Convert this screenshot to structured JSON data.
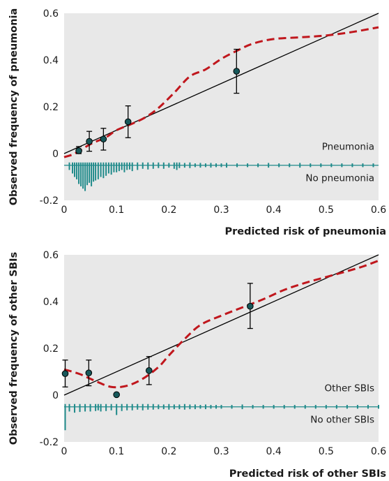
{
  "colors": {
    "panel_bg": "#e8e8e8",
    "ideal_line": "#000000",
    "calibration_curve": "#c0171d",
    "points_fill": "#17585a",
    "spike_color": "#1f8a8a",
    "errorbar": "#000000"
  },
  "chart_data": [
    {
      "type": "scatter",
      "ylabel": "Observed frequency of pneumonia",
      "xlabel": "Predicted risk of pneumonia",
      "xlim": [
        0,
        0.6
      ],
      "ylim": [
        -0.2,
        0.6
      ],
      "x_ticks": [
        "0",
        "0.1",
        "0.2",
        "0.3",
        "0.4",
        "0.5",
        "0.6"
      ],
      "y_ticks": [
        "-0.2",
        "0",
        "0.2",
        "0.4",
        "0.6"
      ],
      "annotation_above": "Pneumonia",
      "annotation_below": "No pneumonia",
      "grid": false,
      "reference_line": [
        [
          0,
          0
        ],
        [
          0.6,
          0.6
        ]
      ],
      "points": [
        {
          "x": 0.028,
          "y": 0.012,
          "lo": 0.0,
          "hi": 0.03
        },
        {
          "x": 0.048,
          "y": 0.052,
          "lo": 0.01,
          "hi": 0.095
        },
        {
          "x": 0.075,
          "y": 0.062,
          "lo": 0.015,
          "hi": 0.108
        },
        {
          "x": 0.122,
          "y": 0.136,
          "lo": 0.068,
          "hi": 0.204
        },
        {
          "x": 0.329,
          "y": 0.352,
          "lo": 0.258,
          "hi": 0.446
        }
      ],
      "smooth_curve": [
        [
          0.0,
          -0.015
        ],
        [
          0.02,
          0.0
        ],
        [
          0.05,
          0.04
        ],
        [
          0.08,
          0.07
        ],
        [
          0.1,
          0.1
        ],
        [
          0.13,
          0.128
        ],
        [
          0.155,
          0.155
        ],
        [
          0.18,
          0.195
        ],
        [
          0.21,
          0.26
        ],
        [
          0.24,
          0.33
        ],
        [
          0.27,
          0.36
        ],
        [
          0.3,
          0.405
        ],
        [
          0.33,
          0.44
        ],
        [
          0.36,
          0.47
        ],
        [
          0.4,
          0.49
        ],
        [
          0.45,
          0.497
        ],
        [
          0.5,
          0.505
        ],
        [
          0.55,
          0.52
        ],
        [
          0.6,
          0.54
        ]
      ],
      "spikes": {
        "x": [
          0.01,
          0.016,
          0.02,
          0.024,
          0.028,
          0.032,
          0.036,
          0.04,
          0.044,
          0.048,
          0.052,
          0.056,
          0.06,
          0.065,
          0.07,
          0.075,
          0.08,
          0.085,
          0.09,
          0.095,
          0.1,
          0.105,
          0.11,
          0.115,
          0.12,
          0.125,
          0.13,
          0.14,
          0.15,
          0.16,
          0.17,
          0.18,
          0.19,
          0.2,
          0.21,
          0.215,
          0.22,
          0.23,
          0.24,
          0.25,
          0.26,
          0.27,
          0.28,
          0.29,
          0.3,
          0.31,
          0.33,
          0.35,
          0.37,
          0.39,
          0.41,
          0.43,
          0.45,
          0.47,
          0.49,
          0.51,
          0.53,
          0.55,
          0.57,
          0.59
        ],
        "len": [
          0.02,
          0.035,
          0.05,
          0.06,
          0.08,
          0.09,
          0.1,
          0.11,
          0.085,
          0.075,
          0.09,
          0.07,
          0.065,
          0.06,
          0.05,
          0.055,
          0.045,
          0.035,
          0.04,
          0.03,
          0.03,
          0.025,
          0.02,
          0.03,
          0.02,
          0.018,
          0.025,
          0.02,
          0.015,
          0.018,
          0.015,
          0.012,
          0.015,
          0.01,
          0.015,
          0.02,
          0.012,
          0.01,
          0.012,
          0.008,
          0.01,
          0.008,
          0.01,
          0.008,
          0.008,
          0.01,
          0.008,
          0.008,
          0.008,
          0.01,
          0.008,
          0.008,
          0.01,
          0.008,
          0.008,
          0.008,
          0.008,
          0.008,
          0.008,
          0.008
        ]
      }
    },
    {
      "type": "scatter",
      "ylabel": "Observed frequency of other SBIs",
      "xlabel": "Predicted risk of other SBIs",
      "xlim": [
        0,
        0.6
      ],
      "ylim": [
        -0.2,
        0.6
      ],
      "x_ticks": [
        "0",
        "0.1",
        "0.2",
        "0.3",
        "0.4",
        "0.5",
        "0.6"
      ],
      "y_ticks": [
        "-0.2",
        "0",
        "0.2",
        "0.4",
        "0.6"
      ],
      "annotation_above": "Other SBIs",
      "annotation_below": "No other SBIs",
      "grid": false,
      "reference_line": [
        [
          0,
          0
        ],
        [
          0.6,
          0.6
        ]
      ],
      "points": [
        {
          "x": 0.002,
          "y": 0.092,
          "lo": 0.035,
          "hi": 0.15
        },
        {
          "x": 0.047,
          "y": 0.095,
          "lo": 0.04,
          "hi": 0.15
        },
        {
          "x": 0.1,
          "y": 0.002,
          "lo": null,
          "hi": null
        },
        {
          "x": 0.162,
          "y": 0.105,
          "lo": 0.045,
          "hi": 0.165
        },
        {
          "x": 0.355,
          "y": 0.38,
          "lo": 0.285,
          "hi": 0.478
        }
      ],
      "smooth_curve": [
        [
          0.0,
          0.11
        ],
        [
          0.03,
          0.09
        ],
        [
          0.06,
          0.06
        ],
        [
          0.09,
          0.035
        ],
        [
          0.12,
          0.04
        ],
        [
          0.15,
          0.07
        ],
        [
          0.18,
          0.12
        ],
        [
          0.2,
          0.17
        ],
        [
          0.23,
          0.24
        ],
        [
          0.26,
          0.3
        ],
        [
          0.3,
          0.34
        ],
        [
          0.34,
          0.375
        ],
        [
          0.38,
          0.41
        ],
        [
          0.42,
          0.45
        ],
        [
          0.46,
          0.48
        ],
        [
          0.5,
          0.505
        ],
        [
          0.54,
          0.53
        ],
        [
          0.57,
          0.55
        ],
        [
          0.6,
          0.575
        ]
      ],
      "spikes": {
        "x": [
          0.002,
          0.01,
          0.02,
          0.03,
          0.04,
          0.05,
          0.06,
          0.065,
          0.07,
          0.08,
          0.09,
          0.1,
          0.11,
          0.12,
          0.13,
          0.14,
          0.15,
          0.16,
          0.17,
          0.18,
          0.19,
          0.2,
          0.21,
          0.22,
          0.23,
          0.24,
          0.25,
          0.26,
          0.27,
          0.28,
          0.29,
          0.3,
          0.32,
          0.34,
          0.36,
          0.38,
          0.4,
          0.42,
          0.44,
          0.46,
          0.48,
          0.5,
          0.52,
          0.54,
          0.56,
          0.58,
          0.6
        ],
        "len": [
          0.1,
          0.02,
          0.025,
          0.022,
          0.02,
          0.02,
          0.018,
          0.015,
          0.02,
          0.018,
          0.015,
          0.035,
          0.018,
          0.015,
          0.015,
          0.012,
          0.015,
          0.012,
          0.012,
          0.01,
          0.01,
          0.012,
          0.01,
          0.01,
          0.012,
          0.01,
          0.01,
          0.008,
          0.01,
          0.008,
          0.008,
          0.008,
          0.008,
          0.01,
          0.008,
          0.008,
          0.008,
          0.008,
          0.008,
          0.008,
          0.008,
          0.008,
          0.008,
          0.008,
          0.008,
          0.008,
          0.008
        ]
      }
    }
  ]
}
